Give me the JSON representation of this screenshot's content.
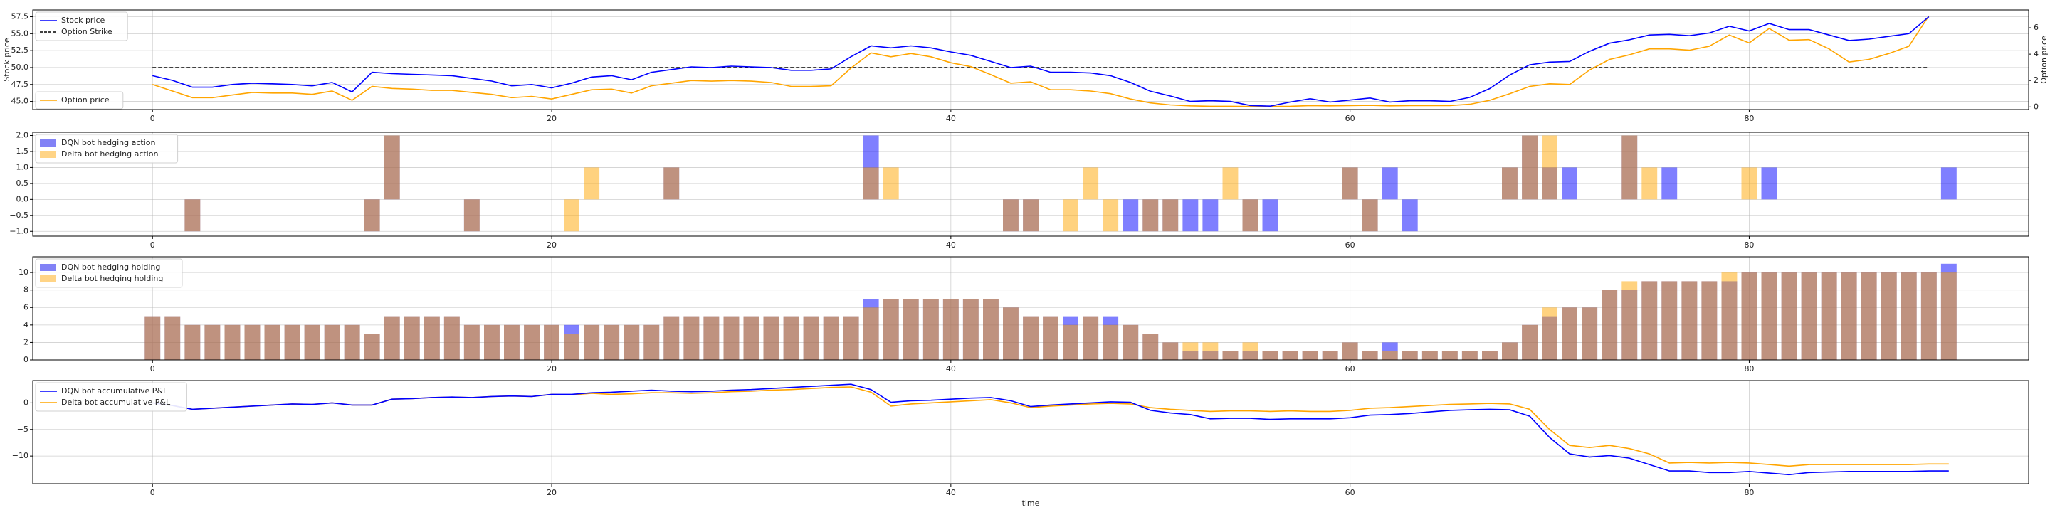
{
  "chart_data": [
    {
      "type": "line",
      "panel": "price",
      "xlim": [
        -6,
        94
      ],
      "ylim": [
        43.8,
        58.5
      ],
      "ylim_right": [
        -0.2,
        7.35
      ],
      "xticks": [
        0,
        20,
        40,
        60,
        80
      ],
      "yticks": [
        45.0,
        47.5,
        50.0,
        52.5,
        55.0,
        57.5
      ],
      "yticks_right": [
        0,
        2,
        4,
        6
      ],
      "ylabel": "Stock price",
      "ylabel_right": "Option price",
      "grid": true,
      "legend_top": [
        {
          "label": "Stock price",
          "color": "#0000ff",
          "dash": false
        },
        {
          "label": "Option Strike",
          "color": "#000000",
          "dash": true
        }
      ],
      "legend_bottom": [
        {
          "label": "Option price",
          "color": "#ffa500",
          "dash": false
        }
      ],
      "strike": 50.0,
      "stock": [
        48.8,
        48.1,
        47.1,
        47.1,
        47.5,
        47.7,
        47.6,
        47.5,
        47.3,
        47.8,
        46.4,
        49.3,
        49.1,
        49.0,
        48.9,
        48.8,
        48.4,
        48.0,
        47.3,
        47.5,
        47.0,
        47.7,
        48.6,
        48.8,
        48.2,
        49.3,
        49.7,
        50.1,
        50.0,
        50.2,
        50.1,
        50.0,
        49.6,
        49.6,
        49.8,
        51.6,
        53.2,
        52.9,
        53.2,
        52.9,
        52.3,
        51.8,
        50.9,
        50.0,
        50.2,
        49.3,
        49.3,
        49.2,
        48.8,
        47.8,
        46.5,
        45.8,
        45.0,
        45.1,
        45.0,
        44.4,
        44.3,
        44.9,
        45.4,
        44.9,
        45.2,
        45.5,
        44.9,
        45.1,
        45.1,
        45.0,
        45.6,
        46.9,
        48.9,
        50.4,
        50.8,
        50.9,
        52.4,
        53.6,
        54.1,
        54.8,
        54.9,
        54.7,
        55.1,
        56.1,
        55.4,
        56.5,
        55.6,
        55.6,
        54.8,
        54.0,
        54.2,
        54.6,
        55.0,
        57.5
      ],
      "option": [
        1.7,
        1.2,
        0.7,
        0.7,
        0.9,
        1.1,
        1.05,
        1.05,
        0.95,
        1.2,
        0.5,
        1.55,
        1.4,
        1.35,
        1.25,
        1.25,
        1.1,
        0.95,
        0.7,
        0.8,
        0.6,
        0.95,
        1.3,
        1.35,
        1.05,
        1.6,
        1.8,
        2.0,
        1.95,
        2.0,
        1.95,
        1.85,
        1.55,
        1.55,
        1.6,
        2.95,
        4.1,
        3.8,
        4.05,
        3.8,
        3.35,
        3.05,
        2.45,
        1.8,
        1.9,
        1.3,
        1.3,
        1.2,
        1.0,
        0.6,
        0.3,
        0.15,
        0.08,
        0.05,
        0.05,
        0.03,
        0.03,
        0.05,
        0.1,
        0.08,
        0.1,
        0.12,
        0.08,
        0.1,
        0.1,
        0.1,
        0.2,
        0.5,
        1.0,
        1.55,
        1.75,
        1.7,
        2.8,
        3.6,
        3.95,
        4.4,
        4.4,
        4.3,
        4.6,
        5.45,
        4.85,
        5.95,
        5.05,
        5.1,
        4.4,
        3.4,
        3.6,
        4.05,
        4.6,
        6.9
      ]
    },
    {
      "type": "bar",
      "panel": "action",
      "xlim": [
        -6,
        94
      ],
      "ylim": [
        -1.15,
        2.1
      ],
      "xticks": [
        0,
        20,
        40,
        60,
        80
      ],
      "yticks": [
        -1.0,
        -0.5,
        0.0,
        0.5,
        1.0,
        1.5,
        2.0
      ],
      "ytick_labels": [
        "−1.0",
        "−0.5",
        "0.0",
        "0.5",
        "1.0",
        "1.5",
        "2.0"
      ],
      "grid": true,
      "legend": [
        {
          "label": "DQN bot hedging action",
          "color": "#7b7bf5"
        },
        {
          "label": "Delta bot hedging action",
          "color": "#ffd27f"
        }
      ],
      "dqn": [
        0,
        0,
        -1,
        0,
        0,
        0,
        0,
        0,
        0,
        0,
        0,
        -1,
        2,
        0,
        0,
        0,
        -1,
        0,
        0,
        0,
        0,
        0,
        0,
        0,
        0,
        0,
        1,
        0,
        0,
        0,
        0,
        0,
        0,
        0,
        0,
        0,
        2,
        0,
        0,
        0,
        0,
        0,
        0,
        -1,
        -1,
        0,
        0,
        0,
        0,
        -1,
        -1,
        -1,
        -1,
        -1,
        0,
        -1,
        -1,
        0,
        0,
        0,
        1,
        -1,
        1,
        -1,
        0,
        0,
        0,
        0,
        1,
        2,
        1,
        1,
        0,
        0,
        2,
        0,
        1,
        0,
        0,
        0,
        0,
        1,
        0,
        0,
        0,
        0,
        0,
        0,
        0,
        0,
        1
      ],
      "delta": [
        0,
        0,
        -1,
        0,
        0,
        0,
        0,
        0,
        0,
        0,
        0,
        -1,
        2,
        0,
        0,
        0,
        -1,
        0,
        0,
        0,
        0,
        -1,
        1,
        0,
        0,
        0,
        1,
        0,
        0,
        0,
        0,
        0,
        0,
        0,
        0,
        0,
        1,
        1,
        0,
        0,
        0,
        0,
        0,
        -1,
        -1,
        0,
        -1,
        1,
        -1,
        0,
        -1,
        -1,
        0,
        0,
        1,
        -1,
        0,
        0,
        0,
        0,
        1,
        -1,
        0,
        0,
        0,
        0,
        0,
        0,
        1,
        2,
        2,
        0,
        0,
        0,
        2,
        1,
        0,
        0,
        0,
        0,
        1,
        0,
        0,
        0,
        0,
        0,
        0,
        0,
        0,
        0,
        0
      ]
    },
    {
      "type": "bar",
      "panel": "holding",
      "xlim": [
        -6,
        94
      ],
      "ylim": [
        0,
        11.8
      ],
      "xticks": [
        0,
        20,
        40,
        60,
        80
      ],
      "yticks": [
        0,
        2,
        4,
        6,
        8,
        10
      ],
      "grid": true,
      "legend": [
        {
          "label": "DQN bot hedging holding",
          "color": "#7b7bf5"
        },
        {
          "label": "Delta bot hedging holding",
          "color": "#ffd27f"
        }
      ],
      "dqn": [
        5,
        5,
        4,
        4,
        4,
        4,
        4,
        4,
        4,
        4,
        4,
        3,
        5,
        5,
        5,
        5,
        4,
        4,
        4,
        4,
        4,
        4,
        4,
        4,
        4,
        4,
        5,
        5,
        5,
        5,
        5,
        5,
        5,
        5,
        5,
        5,
        7,
        7,
        7,
        7,
        7,
        7,
        7,
        6,
        5,
        5,
        5,
        5,
        5,
        4,
        3,
        2,
        1,
        1,
        1,
        1,
        1,
        1,
        1,
        1,
        2,
        1,
        2,
        1,
        1,
        1,
        1,
        1,
        2,
        4,
        5,
        6,
        6,
        8,
        8,
        9,
        9,
        9,
        9,
        9,
        10,
        10,
        10,
        10,
        10,
        10,
        10,
        10,
        10,
        10,
        11
      ],
      "delta": [
        5,
        5,
        4,
        4,
        4,
        4,
        4,
        4,
        4,
        4,
        4,
        3,
        5,
        5,
        5,
        5,
        4,
        4,
        4,
        4,
        4,
        3,
        4,
        4,
        4,
        4,
        5,
        5,
        5,
        5,
        5,
        5,
        5,
        5,
        5,
        5,
        6,
        7,
        7,
        7,
        7,
        7,
        7,
        6,
        5,
        5,
        4,
        5,
        4,
        4,
        3,
        2,
        2,
        2,
        1,
        2,
        1,
        1,
        1,
        1,
        2,
        1,
        1,
        1,
        1,
        1,
        1,
        1,
        2,
        4,
        6,
        6,
        6,
        8,
        9,
        9,
        9,
        9,
        9,
        10,
        10,
        10,
        10,
        10,
        10,
        10,
        10,
        10,
        10,
        10,
        10
      ]
    },
    {
      "type": "line",
      "panel": "pnl",
      "xlim": [
        -6,
        94
      ],
      "ylim": [
        -15.2,
        4.2
      ],
      "xticks": [
        0,
        20,
        40,
        60,
        80
      ],
      "yticks": [
        -10,
        -5,
        0
      ],
      "ytick_labels": [
        "−10",
        "−5",
        "0"
      ],
      "xlabel": "time",
      "grid": true,
      "legend": [
        {
          "label": "DQN bot accumulative P&L",
          "color": "#0000ff"
        },
        {
          "label": "Delta bot accumulative P&L",
          "color": "#ffa500"
        }
      ],
      "dqn": [
        0.0,
        -0.5,
        -1.2,
        -1.0,
        -0.8,
        -0.6,
        -0.4,
        -0.2,
        -0.3,
        0.0,
        -0.4,
        -0.4,
        0.7,
        0.8,
        1.0,
        1.1,
        1.0,
        1.2,
        1.3,
        1.2,
        1.6,
        1.6,
        1.9,
        2.0,
        2.2,
        2.4,
        2.2,
        2.1,
        2.2,
        2.4,
        2.5,
        2.7,
        2.9,
        3.1,
        3.3,
        3.5,
        2.5,
        0.1,
        0.4,
        0.5,
        0.7,
        0.9,
        1.0,
        0.4,
        -0.7,
        -0.4,
        -0.2,
        0.0,
        0.2,
        0.1,
        -1.4,
        -1.9,
        -2.2,
        -3.0,
        -2.9,
        -2.9,
        -3.1,
        -3.0,
        -3.0,
        -3.0,
        -2.8,
        -2.3,
        -2.2,
        -2.0,
        -1.7,
        -1.4,
        -1.3,
        -1.2,
        -1.3,
        -2.5,
        -6.5,
        -9.6,
        -10.2,
        -9.9,
        -10.4,
        -11.6,
        -12.8,
        -12.8,
        -13.1,
        -13.1,
        -12.9,
        -13.2,
        -13.5,
        -13.1,
        -13.0,
        -12.9,
        -12.9,
        -12.9,
        -12.9,
        -12.8,
        -12.8
      ],
      "delta": [
        0.0,
        -0.5,
        -1.2,
        -1.0,
        -0.8,
        -0.6,
        -0.4,
        -0.2,
        -0.3,
        0.0,
        -0.4,
        -0.4,
        0.7,
        0.8,
        1.0,
        1.1,
        1.0,
        1.2,
        1.3,
        1.2,
        1.6,
        1.5,
        1.8,
        1.6,
        1.7,
        1.9,
        1.9,
        1.8,
        1.9,
        2.1,
        2.2,
        2.4,
        2.5,
        2.7,
        2.9,
        3.0,
        2.0,
        -0.6,
        -0.2,
        0.0,
        0.2,
        0.4,
        0.6,
        0.0,
        -0.9,
        -0.6,
        -0.4,
        -0.2,
        -0.1,
        -0.2,
        -0.9,
        -1.2,
        -1.4,
        -1.6,
        -1.5,
        -1.5,
        -1.6,
        -1.5,
        -1.6,
        -1.6,
        -1.4,
        -1.0,
        -0.9,
        -0.7,
        -0.5,
        -0.3,
        -0.2,
        -0.1,
        -0.2,
        -1.2,
        -5.0,
        -8.0,
        -8.4,
        -8.0,
        -8.6,
        -9.6,
        -11.3,
        -11.2,
        -11.3,
        -11.2,
        -11.3,
        -11.6,
        -11.9,
        -11.6,
        -11.6,
        -11.6,
        -11.6,
        -11.6,
        -11.6,
        -11.5,
        -11.5
      ]
    }
  ]
}
